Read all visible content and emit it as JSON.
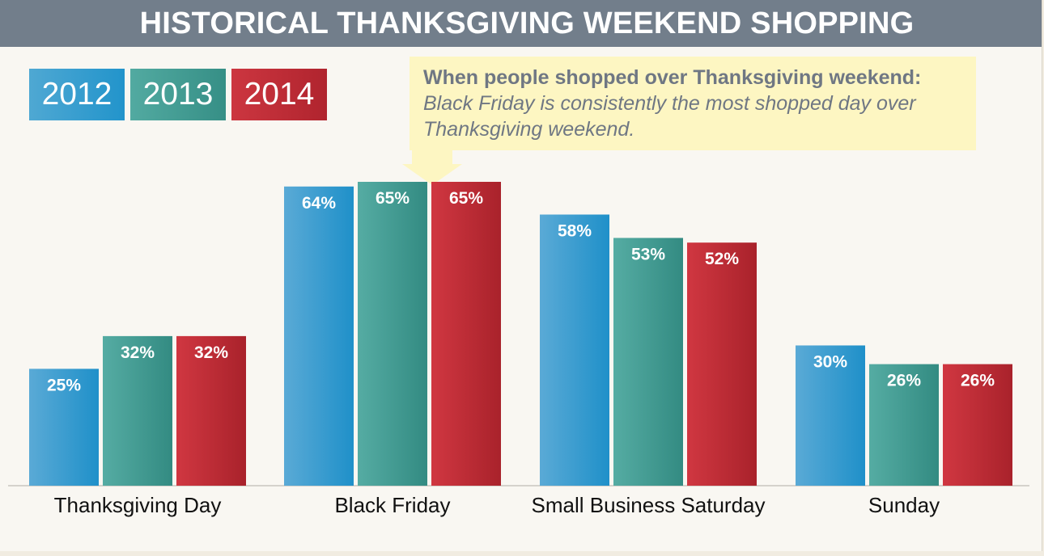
{
  "title": "HISTORICAL THANKSGIVING WEEKEND SHOPPING",
  "callout": {
    "heading": "When people shopped over Thanksgiving weekend:",
    "line1": "Black Friday is consistently the most shopped day over",
    "line2": "Thanksgiving weekend."
  },
  "colors": {
    "y2012": "#2b97cc",
    "y2013": "#3e9c92",
    "y2014": "#c22d37"
  },
  "chart_data": {
    "type": "bar",
    "categories": [
      "Thanksgiving Day",
      "Black Friday",
      "Small Business Saturday",
      "Sunday"
    ],
    "series": [
      {
        "name": "2012",
        "values": [
          25,
          64,
          58,
          30
        ],
        "labels": [
          "25%",
          "64%",
          "58%",
          "30%"
        ]
      },
      {
        "name": "2013",
        "values": [
          32,
          65,
          53,
          26
        ],
        "labels": [
          "32%",
          "65%",
          "53%",
          "26%"
        ]
      },
      {
        "name": "2014",
        "values": [
          32,
          65,
          52,
          26
        ],
        "labels": [
          "32%",
          "65%",
          "52%",
          "26%"
        ]
      }
    ],
    "ylim": [
      0,
      65
    ],
    "grid": false,
    "legend_position": "top-left"
  }
}
